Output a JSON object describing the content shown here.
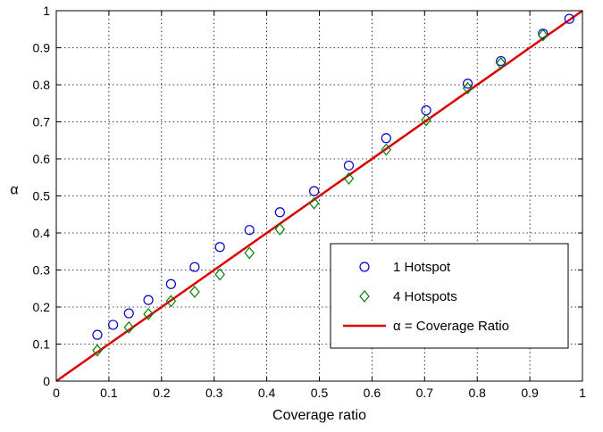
{
  "chart_data": {
    "type": "scatter",
    "xlabel": "Coverage ratio",
    "ylabel": "α",
    "xlim": [
      0,
      1
    ],
    "ylim": [
      0,
      1
    ],
    "xticks": [
      "0",
      "0.1",
      "0.2",
      "0.3",
      "0.4",
      "0.5",
      "0.6",
      "0.7",
      "0.8",
      "0.9",
      "1"
    ],
    "yticks": [
      "0",
      "0.1",
      "0.2",
      "0.3",
      "0.4",
      "0.5",
      "0.6",
      "0.7",
      "0.8",
      "0.9",
      "1"
    ],
    "grid": true,
    "legend_position": "bottom-right",
    "series": [
      {
        "name": "1 Hotspot",
        "marker": "circle",
        "color": "#0000cc",
        "x": [
          0.078,
          0.108,
          0.138,
          0.175,
          0.218,
          0.263,
          0.311,
          0.367,
          0.425,
          0.49,
          0.556,
          0.627,
          0.703,
          0.782,
          0.845,
          0.925,
          0.975
        ],
        "y": [
          0.125,
          0.152,
          0.183,
          0.219,
          0.262,
          0.308,
          0.362,
          0.408,
          0.456,
          0.513,
          0.582,
          0.656,
          0.731,
          0.803,
          0.864,
          0.938,
          0.978
        ]
      },
      {
        "name": "4 Hotspots",
        "marker": "diamond",
        "color": "#008000",
        "x": [
          0.078,
          0.138,
          0.175,
          0.218,
          0.263,
          0.311,
          0.367,
          0.425,
          0.49,
          0.556,
          0.627,
          0.703,
          0.782,
          0.845,
          0.925
        ],
        "y": [
          0.083,
          0.145,
          0.181,
          0.216,
          0.241,
          0.288,
          0.346,
          0.41,
          0.48,
          0.547,
          0.625,
          0.705,
          0.791,
          0.858,
          0.934
        ]
      },
      {
        "name": "α = Coverage Ratio",
        "marker": "line",
        "color": "#dd0000",
        "x": [
          0,
          1
        ],
        "y": [
          0,
          1
        ]
      }
    ]
  }
}
